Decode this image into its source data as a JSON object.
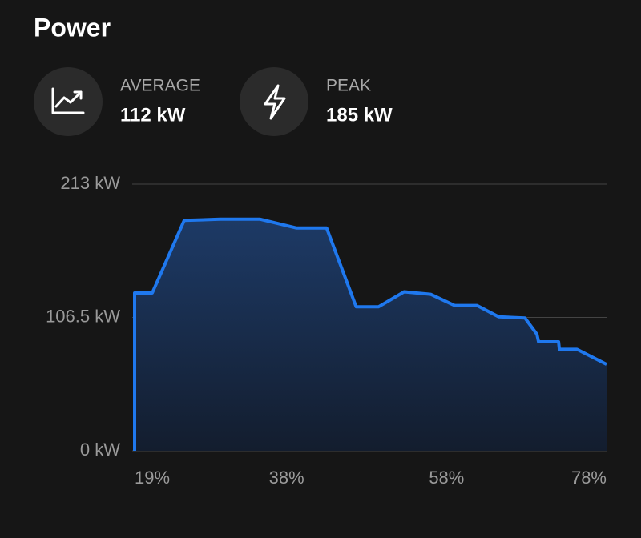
{
  "title": "Power",
  "stats": [
    {
      "label": "AVERAGE",
      "value": "112 kW"
    },
    {
      "label": "PEAK",
      "value": "185 kW"
    }
  ],
  "chart_data": {
    "type": "area",
    "x": [
      19,
      19,
      21.2,
      25.2,
      29.7,
      34.7,
      39.2,
      43.0,
      46.7,
      49.5,
      52.7,
      56.0,
      59.0,
      61.8,
      64.5,
      67.8,
      69.3,
      69.5,
      72.0,
      72.1,
      74.3,
      78.0
    ],
    "values": [
      0,
      126,
      126,
      184,
      185,
      185,
      178,
      178,
      115,
      115,
      127,
      125,
      116,
      116,
      107,
      106,
      93,
      87,
      87,
      81,
      81,
      69
    ],
    "color": "#1f78ee",
    "xlim": [
      19,
      78
    ],
    "xticks": [
      {
        "value": 19,
        "label": "19%"
      },
      {
        "value": 38,
        "label": "38%"
      },
      {
        "value": 58,
        "label": "58%"
      },
      {
        "value": 78,
        "label": "78%"
      }
    ],
    "ylim": [
      0,
      213
    ],
    "yticks": [
      {
        "value": 0,
        "label": "0 kW"
      },
      {
        "value": 106.5,
        "label": "106.5 kW"
      },
      {
        "value": 213,
        "label": "213 kW"
      }
    ],
    "grid": true
  }
}
